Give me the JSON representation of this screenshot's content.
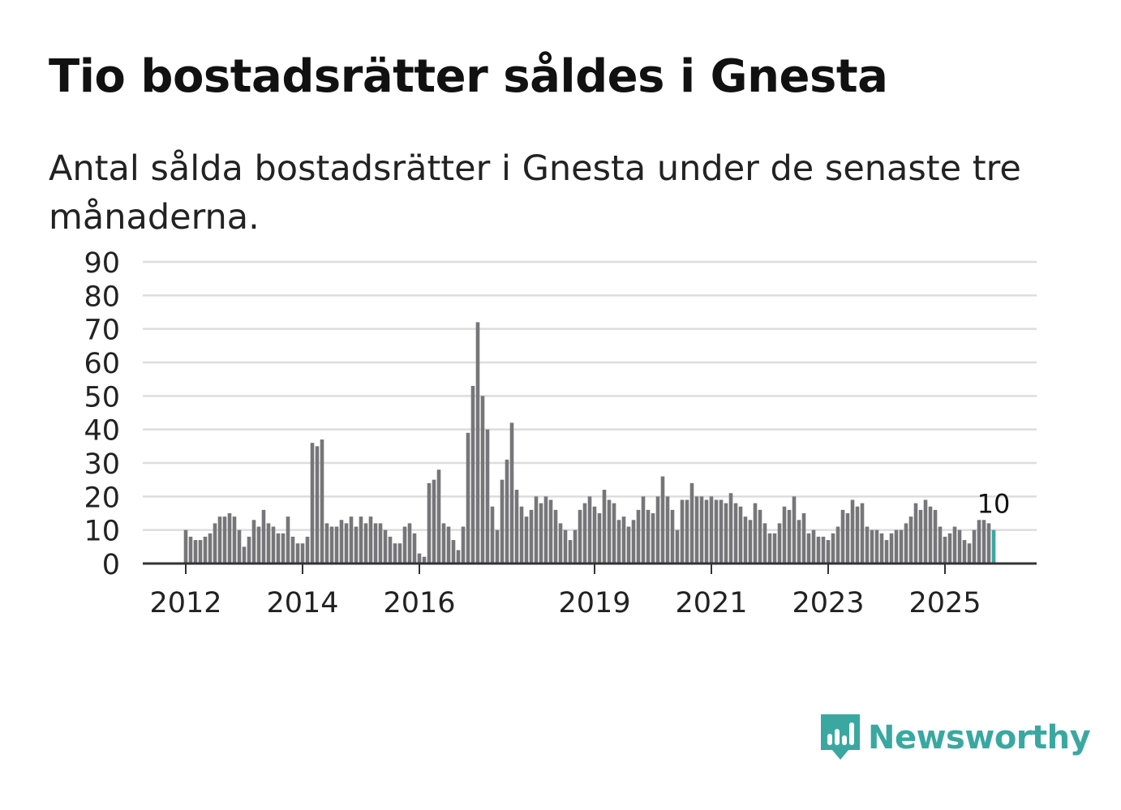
{
  "title": "Tio bostadsrätter såldes i Gnesta",
  "subtitle": "Antal sålda bostadsrätter i Gnesta under de senaste tre månaderna.",
  "brand": {
    "name": "Newsworthy",
    "color": "#3aa8a1",
    "icon": "newsworthy-logo-icon"
  },
  "colors": {
    "bar": "#76767a",
    "highlight": "#3aa8a1",
    "grid": "#dddddd",
    "axis": "#333333",
    "text": "#222222"
  },
  "chart_data": {
    "type": "bar",
    "title": "Tio bostadsrätter såldes i Gnesta",
    "xlabel": "",
    "ylabel": "",
    "ylim": [
      0,
      90
    ],
    "y_ticks": [
      0,
      10,
      20,
      30,
      40,
      50,
      60,
      70,
      80,
      90
    ],
    "grid": true,
    "start": "2012-01",
    "frequency": "monthly",
    "x_tick_labels": [
      {
        "label": "2012",
        "index": 0
      },
      {
        "label": "2014",
        "index": 24
      },
      {
        "label": "2016",
        "index": 48
      },
      {
        "label": "2019",
        "index": 84
      },
      {
        "label": "2021",
        "index": 108
      },
      {
        "label": "2023",
        "index": 132
      },
      {
        "label": "2025",
        "index": 156
      }
    ],
    "values": [
      10,
      8,
      7,
      7,
      8,
      9,
      12,
      14,
      14,
      15,
      14,
      10,
      5,
      8,
      13,
      11,
      16,
      12,
      11,
      9,
      9,
      14,
      8,
      6,
      6,
      8,
      36,
      35,
      37,
      12,
      11,
      11,
      13,
      12,
      14,
      11,
      14,
      12,
      14,
      12,
      12,
      10,
      8,
      6,
      6,
      11,
      12,
      9,
      3,
      2,
      24,
      25,
      28,
      12,
      11,
      7,
      4,
      11,
      39,
      53,
      72,
      50,
      40,
      17,
      10,
      25,
      31,
      42,
      22,
      17,
      14,
      16,
      20,
      18,
      20,
      19,
      16,
      12,
      10,
      7,
      10,
      16,
      18,
      20,
      17,
      15,
      22,
      19,
      18,
      13,
      14,
      11,
      13,
      16,
      20,
      16,
      15,
      20,
      26,
      20,
      16,
      10,
      19,
      19,
      24,
      20,
      20,
      19,
      20,
      19,
      19,
      18,
      21,
      18,
      17,
      14,
      13,
      18,
      16,
      12,
      9,
      9,
      12,
      17,
      16,
      20,
      13,
      15,
      9,
      10,
      8,
      8,
      7,
      9,
      11,
      16,
      15,
      19,
      17,
      18,
      11,
      10,
      10,
      9,
      7,
      9,
      10,
      10,
      12,
      14,
      18,
      16,
      19,
      17,
      16,
      11,
      8,
      9,
      11,
      10,
      7,
      6,
      10,
      13,
      13,
      12,
      10
    ],
    "highlight_index": 166,
    "annotations": [
      {
        "index": 166,
        "text": "10"
      }
    ]
  }
}
